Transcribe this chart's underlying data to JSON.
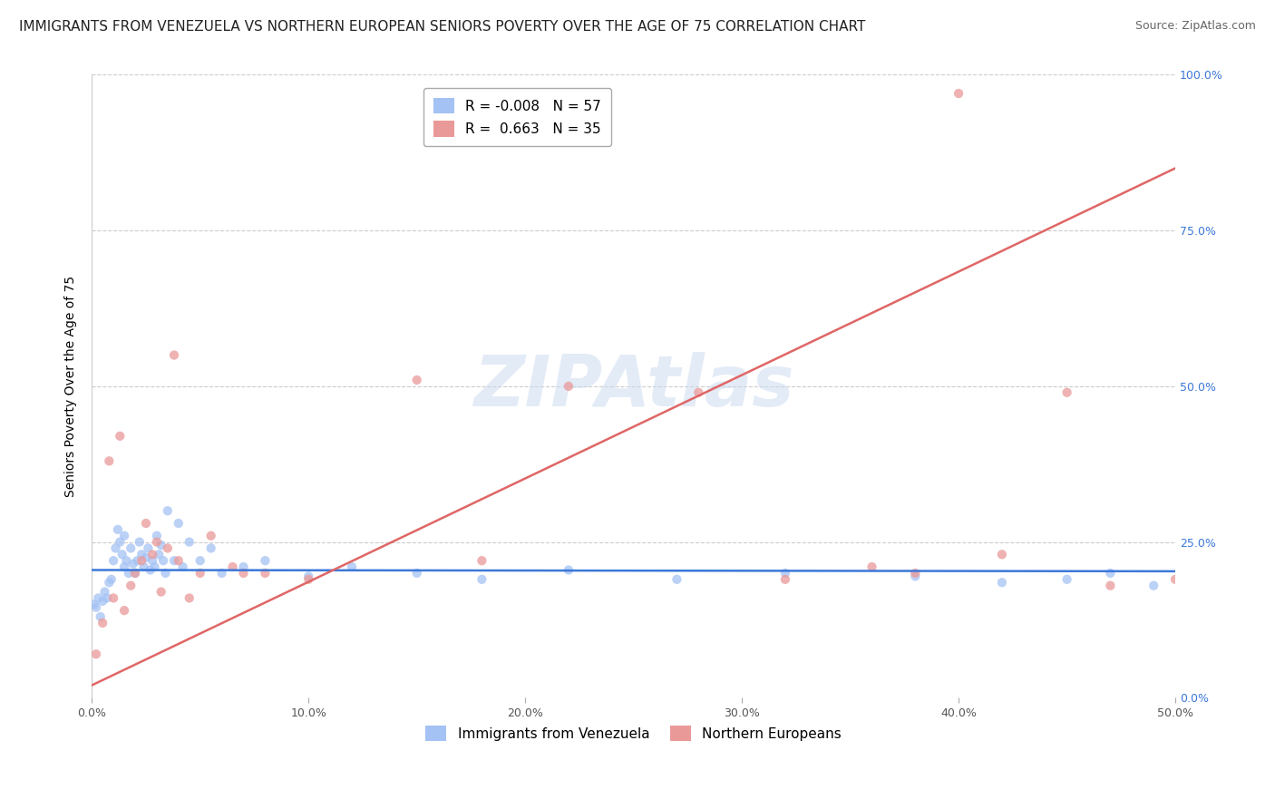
{
  "title": "IMMIGRANTS FROM VENEZUELA VS NORTHERN EUROPEAN SENIORS POVERTY OVER THE AGE OF 75 CORRELATION CHART",
  "source": "Source: ZipAtlas.com",
  "ylabel": "Seniors Poverty Over the Age of 75",
  "xlabel_ticks": [
    "0.0%",
    "10.0%",
    "20.0%",
    "30.0%",
    "40.0%",
    "50.0%"
  ],
  "xlabel_vals": [
    0,
    10,
    20,
    30,
    40,
    50
  ],
  "left_ytick_vals": [
    0,
    25,
    50,
    75,
    100
  ],
  "left_ytick_labels": [
    "",
    "",
    "",
    "",
    ""
  ],
  "right_ytick_vals": [
    0,
    25,
    50,
    75,
    100
  ],
  "right_ytick_labels": [
    "0.0%",
    "25.0%",
    "50.0%",
    "75.0%",
    "100.0%"
  ],
  "watermark": "ZIPAtlas",
  "legend_blue_label": "Immigrants from Venezuela",
  "legend_pink_label": "Northern Europeans",
  "R_blue": -0.008,
  "N_blue": 57,
  "R_pink": 0.663,
  "N_pink": 35,
  "blue_color": "#a4c2f4",
  "pink_color": "#ea9999",
  "blue_line_color": "#3c78d8",
  "pink_line_color": "#e06666",
  "blue_scatter": {
    "x": [
      0.1,
      0.2,
      0.3,
      0.4,
      0.5,
      0.6,
      0.7,
      0.8,
      0.9,
      1.0,
      1.1,
      1.2,
      1.3,
      1.4,
      1.5,
      1.5,
      1.6,
      1.7,
      1.8,
      1.9,
      2.0,
      2.1,
      2.2,
      2.3,
      2.4,
      2.5,
      2.6,
      2.7,
      2.8,
      2.9,
      3.0,
      3.1,
      3.2,
      3.3,
      3.4,
      3.5,
      3.8,
      4.0,
      4.2,
      4.5,
      5.0,
      5.5,
      6.0,
      7.0,
      8.0,
      10.0,
      12.0,
      15.0,
      18.0,
      22.0,
      27.0,
      32.0,
      38.0,
      42.0,
      45.0,
      47.0,
      49.0
    ],
    "y": [
      15.0,
      14.5,
      16.0,
      13.0,
      15.5,
      17.0,
      16.0,
      18.5,
      19.0,
      22.0,
      24.0,
      27.0,
      25.0,
      23.0,
      21.0,
      26.0,
      22.0,
      20.0,
      24.0,
      21.5,
      20.0,
      22.0,
      25.0,
      23.0,
      21.0,
      22.5,
      24.0,
      20.5,
      22.0,
      21.0,
      26.0,
      23.0,
      24.5,
      22.0,
      20.0,
      30.0,
      22.0,
      28.0,
      21.0,
      25.0,
      22.0,
      24.0,
      20.0,
      21.0,
      22.0,
      19.5,
      21.0,
      20.0,
      19.0,
      20.5,
      19.0,
      20.0,
      19.5,
      18.5,
      19.0,
      20.0,
      18.0
    ]
  },
  "pink_scatter": {
    "x": [
      0.2,
      0.5,
      0.8,
      1.0,
      1.3,
      1.5,
      1.8,
      2.0,
      2.3,
      2.5,
      2.8,
      3.0,
      3.2,
      3.5,
      3.8,
      4.0,
      4.5,
      5.0,
      5.5,
      6.5,
      7.0,
      8.0,
      10.0,
      15.0,
      18.0,
      22.0,
      28.0,
      32.0,
      36.0,
      38.0,
      40.0,
      42.0,
      45.0,
      47.0,
      50.0
    ],
    "y": [
      7.0,
      12.0,
      38.0,
      16.0,
      42.0,
      14.0,
      18.0,
      20.0,
      22.0,
      28.0,
      23.0,
      25.0,
      17.0,
      24.0,
      55.0,
      22.0,
      16.0,
      20.0,
      26.0,
      21.0,
      20.0,
      20.0,
      19.0,
      51.0,
      22.0,
      50.0,
      49.0,
      19.0,
      21.0,
      20.0,
      97.0,
      23.0,
      49.0,
      18.0,
      19.0
    ]
  },
  "xlim": [
    0,
    50
  ],
  "ylim": [
    0,
    100
  ],
  "title_fontsize": 11,
  "source_fontsize": 9,
  "axis_label_fontsize": 10,
  "tick_fontsize": 9,
  "legend_fontsize": 10,
  "background_color": "#ffffff",
  "grid_color": "#cccccc",
  "grid_style": "--",
  "blue_line_intercept": 20.5,
  "blue_line_slope": -0.004,
  "pink_line_x0": 0,
  "pink_line_y0": 2.0,
  "pink_line_x1": 50,
  "pink_line_y1": 85.0
}
